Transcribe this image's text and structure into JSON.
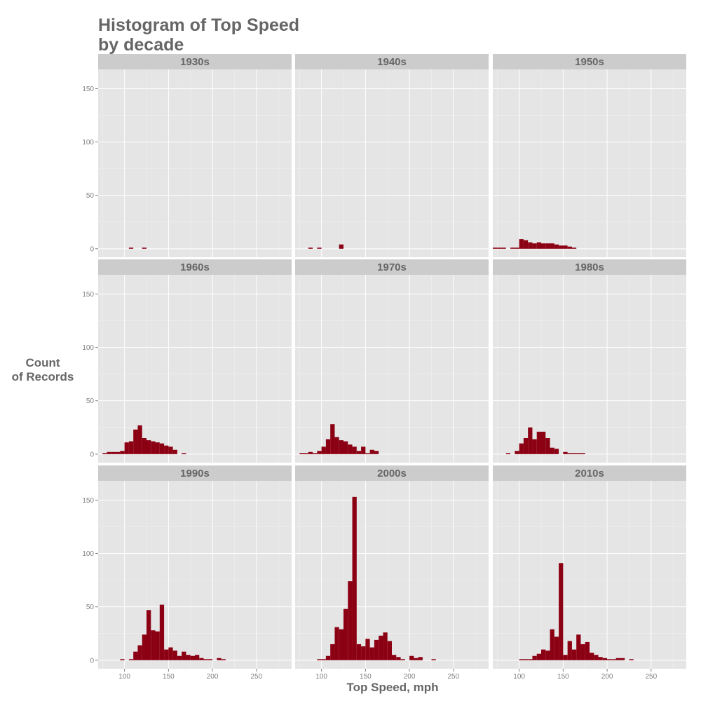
{
  "colors": {
    "bar": "#8b0013",
    "panel_bg": "#e5e5e5",
    "strip_bg": "#cccccc",
    "grid": "#ffffff",
    "text": "#666666"
  },
  "chart_data": {
    "type": "bar",
    "title_lines": [
      "Histogram of Top Speed",
      "by decade"
    ],
    "xlabel": "Top Speed, mph",
    "ylabel_lines": [
      "Count",
      "of Records"
    ],
    "xlim": [
      70,
      290
    ],
    "ylim": [
      -8,
      168
    ],
    "x_ticks": [
      100,
      150,
      200,
      250
    ],
    "y_ticks": [
      0,
      50,
      100,
      150
    ],
    "bin_width": 5,
    "grid": true,
    "panels": [
      {
        "name": "1930s",
        "bins": [
          [
            105,
            1
          ],
          [
            120,
            1
          ]
        ]
      },
      {
        "name": "1940s",
        "bins": [
          [
            85,
            1
          ],
          [
            95,
            1
          ],
          [
            120,
            4
          ]
        ]
      },
      {
        "name": "1950s",
        "bins": [
          [
            70,
            1
          ],
          [
            75,
            1
          ],
          [
            80,
            1
          ],
          [
            90,
            1
          ],
          [
            95,
            1
          ],
          [
            100,
            9
          ],
          [
            105,
            8
          ],
          [
            110,
            6
          ],
          [
            115,
            5
          ],
          [
            120,
            6
          ],
          [
            125,
            5
          ],
          [
            130,
            5
          ],
          [
            135,
            5
          ],
          [
            140,
            4
          ],
          [
            145,
            3
          ],
          [
            150,
            3
          ],
          [
            155,
            2
          ],
          [
            160,
            1
          ]
        ]
      },
      {
        "name": "1960s",
        "bins": [
          [
            75,
            1
          ],
          [
            80,
            2
          ],
          [
            85,
            2
          ],
          [
            90,
            2
          ],
          [
            95,
            3
          ],
          [
            100,
            11
          ],
          [
            105,
            12
          ],
          [
            110,
            23
          ],
          [
            115,
            27
          ],
          [
            120,
            15
          ],
          [
            125,
            13
          ],
          [
            130,
            12
          ],
          [
            135,
            11
          ],
          [
            140,
            10
          ],
          [
            145,
            8
          ],
          [
            150,
            7
          ],
          [
            155,
            4
          ],
          [
            165,
            1
          ]
        ]
      },
      {
        "name": "1970s",
        "bins": [
          [
            75,
            1
          ],
          [
            80,
            1
          ],
          [
            85,
            2
          ],
          [
            90,
            1
          ],
          [
            95,
            3
          ],
          [
            100,
            7
          ],
          [
            105,
            14
          ],
          [
            110,
            28
          ],
          [
            115,
            16
          ],
          [
            120,
            13
          ],
          [
            125,
            12
          ],
          [
            130,
            9
          ],
          [
            135,
            7
          ],
          [
            140,
            3
          ],
          [
            145,
            7
          ],
          [
            150,
            1
          ],
          [
            155,
            4
          ],
          [
            160,
            3
          ]
        ]
      },
      {
        "name": "1980s",
        "bins": [
          [
            85,
            1
          ],
          [
            95,
            3
          ],
          [
            100,
            10
          ],
          [
            105,
            15
          ],
          [
            110,
            25
          ],
          [
            115,
            14
          ],
          [
            120,
            21
          ],
          [
            125,
            21
          ],
          [
            130,
            15
          ],
          [
            135,
            6
          ],
          [
            140,
            5
          ],
          [
            150,
            2
          ],
          [
            155,
            1
          ],
          [
            160,
            1
          ],
          [
            165,
            1
          ],
          [
            170,
            1
          ]
        ]
      },
      {
        "name": "1990s",
        "bins": [
          [
            95,
            1
          ],
          [
            105,
            1
          ],
          [
            110,
            8
          ],
          [
            115,
            14
          ],
          [
            120,
            24
          ],
          [
            125,
            47
          ],
          [
            130,
            28
          ],
          [
            135,
            27
          ],
          [
            140,
            52
          ],
          [
            145,
            10
          ],
          [
            150,
            12
          ],
          [
            155,
            9
          ],
          [
            160,
            4
          ],
          [
            165,
            8
          ],
          [
            170,
            5
          ],
          [
            175,
            4
          ],
          [
            180,
            5
          ],
          [
            185,
            2
          ],
          [
            190,
            1
          ],
          [
            195,
            1
          ],
          [
            205,
            2
          ],
          [
            210,
            1
          ]
        ]
      },
      {
        "name": "2000s",
        "bins": [
          [
            95,
            1
          ],
          [
            100,
            1
          ],
          [
            105,
            4
          ],
          [
            110,
            15
          ],
          [
            115,
            31
          ],
          [
            120,
            29
          ],
          [
            125,
            48
          ],
          [
            130,
            74
          ],
          [
            135,
            153
          ],
          [
            140,
            15
          ],
          [
            145,
            13
          ],
          [
            150,
            20
          ],
          [
            155,
            12
          ],
          [
            160,
            19
          ],
          [
            165,
            23
          ],
          [
            170,
            26
          ],
          [
            175,
            18
          ],
          [
            180,
            5
          ],
          [
            185,
            3
          ],
          [
            190,
            1
          ],
          [
            200,
            4
          ],
          [
            205,
            2
          ],
          [
            210,
            3
          ],
          [
            225,
            1
          ]
        ]
      },
      {
        "name": "2010s",
        "bins": [
          [
            100,
            1
          ],
          [
            105,
            1
          ],
          [
            110,
            1
          ],
          [
            115,
            4
          ],
          [
            120,
            6
          ],
          [
            125,
            10
          ],
          [
            130,
            9
          ],
          [
            135,
            29
          ],
          [
            140,
            22
          ],
          [
            145,
            91
          ],
          [
            150,
            5
          ],
          [
            155,
            18
          ],
          [
            160,
            10
          ],
          [
            165,
            24
          ],
          [
            170,
            15
          ],
          [
            175,
            17
          ],
          [
            180,
            7
          ],
          [
            185,
            5
          ],
          [
            190,
            3
          ],
          [
            195,
            2
          ],
          [
            200,
            1
          ],
          [
            205,
            1
          ],
          [
            210,
            2
          ],
          [
            215,
            2
          ],
          [
            225,
            1
          ]
        ]
      }
    ]
  }
}
